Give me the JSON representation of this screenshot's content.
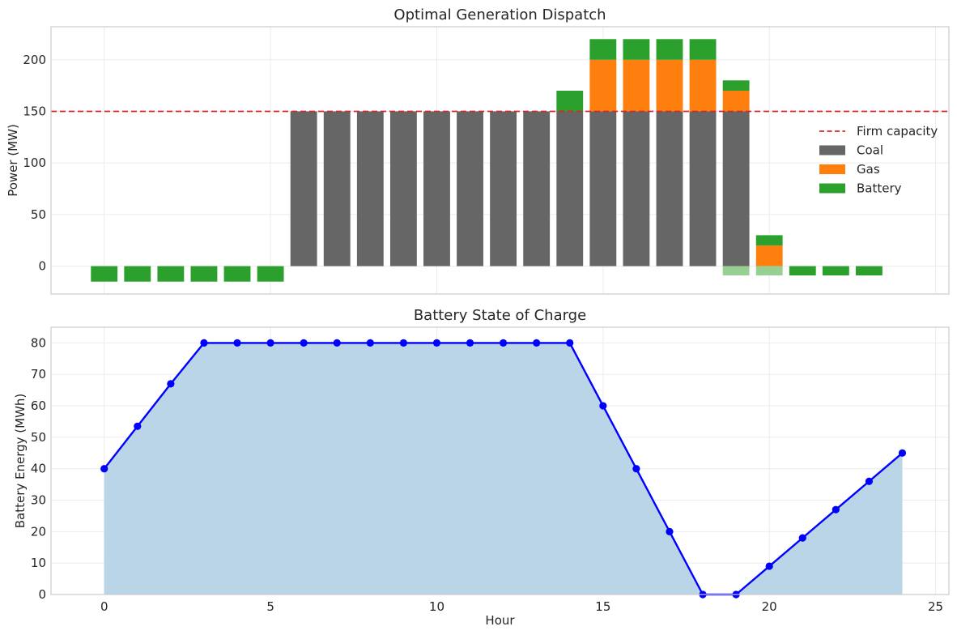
{
  "chart_data": [
    {
      "type": "bar",
      "stacked": true,
      "title": "Optimal Generation Dispatch",
      "xlabel": "",
      "ylabel": "Power (MW)",
      "xlim": [
        -1.6,
        25.4
      ],
      "ylim": [
        -27,
        232
      ],
      "yticks": [
        0,
        50,
        100,
        150,
        200
      ],
      "xticks": [
        0,
        5,
        10,
        15,
        20,
        25
      ],
      "grid": true,
      "legend_position": "center-right",
      "x": [
        0,
        1,
        2,
        3,
        4,
        5,
        6,
        7,
        8,
        9,
        10,
        11,
        12,
        13,
        14,
        15,
        16,
        17,
        18,
        19,
        20,
        21,
        22,
        23
      ],
      "series": [
        {
          "name": "Coal",
          "color": "#666666",
          "values": [
            0,
            0,
            0,
            0,
            0,
            0,
            150,
            150,
            150,
            150,
            150,
            150,
            150,
            150,
            150,
            150,
            150,
            150,
            150,
            150,
            0,
            0,
            0,
            0
          ]
        },
        {
          "name": "Gas",
          "color": "#ff7f0e",
          "values": [
            0,
            0,
            0,
            0,
            0,
            0,
            0,
            0,
            0,
            0,
            0,
            0,
            0,
            0,
            0,
            50,
            50,
            50,
            50,
            20,
            20,
            0,
            0,
            0
          ]
        },
        {
          "name": "Battery",
          "color": "#2ca02c",
          "values": [
            -15,
            -15,
            -15,
            -15,
            -15,
            -15,
            0,
            0,
            0,
            0,
            0,
            0,
            0,
            0,
            20,
            20,
            20,
            20,
            20,
            10,
            10,
            -9,
            -9,
            -9
          ]
        }
      ],
      "faded_battery_values": [
        0,
        0,
        0,
        0,
        0,
        0,
        0,
        0,
        0,
        0,
        0,
        0,
        0,
        0,
        0,
        0,
        0,
        0,
        0,
        -9,
        -9,
        0,
        0,
        0
      ],
      "faded_color": "#98d094",
      "reference_line": {
        "name": "Firm capacity",
        "y": 150,
        "color": "#d62728",
        "style": "dashed"
      }
    },
    {
      "type": "area",
      "title": "Battery State of Charge",
      "xlabel": "Hour",
      "ylabel": "Battery Energy (MWh)",
      "xlim": [
        -1.6,
        25.4
      ],
      "ylim": [
        0,
        85
      ],
      "yticks": [
        0,
        10,
        20,
        30,
        40,
        50,
        60,
        70,
        80
      ],
      "xticks": [
        0,
        5,
        10,
        15,
        20,
        25
      ],
      "grid": true,
      "x": [
        0,
        1,
        2,
        3,
        4,
        5,
        6,
        7,
        8,
        9,
        10,
        11,
        12,
        13,
        14,
        15,
        16,
        17,
        18,
        19,
        20,
        21,
        22,
        23,
        24
      ],
      "values": [
        40,
        53.5,
        67,
        80,
        80,
        80,
        80,
        80,
        80,
        80,
        80,
        80,
        80,
        80,
        80,
        60,
        40,
        20,
        0,
        0,
        9,
        18,
        27,
        36,
        45
      ],
      "line_color": "#0000ff",
      "fill_color": "#bad5e8"
    }
  ]
}
